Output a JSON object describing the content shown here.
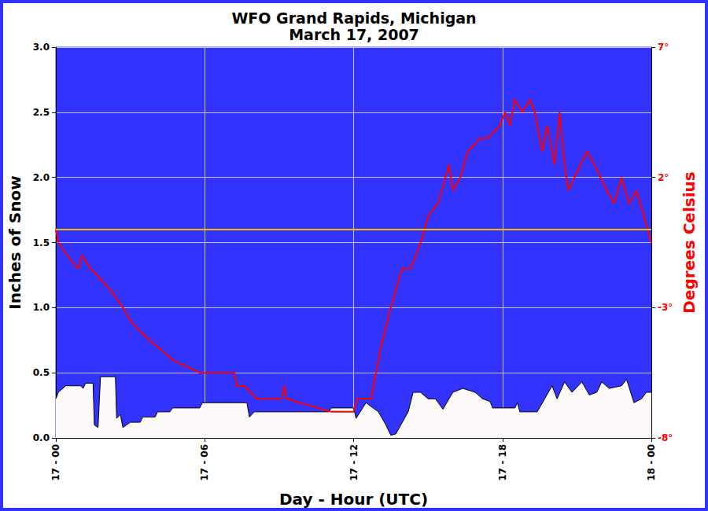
{
  "chart_data": {
    "type": "line",
    "title": "WFO Grand Rapids, Michigan",
    "subtitle": "March 17, 2007",
    "x_label": "Day - Hour (UTC)",
    "y_label": "Inches of Snow",
    "y2_label": "Degrees Celsius",
    "xlim": [
      0,
      24
    ],
    "xticks": [
      {
        "value": 0,
        "label": "17 - 00"
      },
      {
        "value": 6,
        "label": "17 - 06"
      },
      {
        "value": 12,
        "label": "17 - 12"
      },
      {
        "value": 18,
        "label": "17 - 18"
      },
      {
        "value": 24,
        "label": "18 - 00"
      }
    ],
    "ylim": [
      0,
      3
    ],
    "yticks": [
      {
        "value": 0,
        "label": "0.0"
      },
      0.5,
      {
        "value": 1,
        "label": "1.0"
      },
      1.5,
      {
        "value": 2,
        "label": "2.0"
      },
      2.5,
      {
        "value": 3,
        "label": "3.0"
      }
    ],
    "y2lim": [
      -8,
      7
    ],
    "y2ticks": [
      {
        "value": -8,
        "label": "-8°"
      },
      {
        "value": -3,
        "label": "-3°"
      },
      {
        "value": 2,
        "label": "2°"
      },
      {
        "value": 7,
        "label": "7°"
      }
    ],
    "grid": true,
    "reference_lines": [
      {
        "value": 0,
        "axis": "y2",
        "color": "#f0c000"
      }
    ],
    "series": [
      {
        "type": "area",
        "axis": "y",
        "color": "#fdf9f9",
        "x": [
          0,
          0.1,
          0.4,
          1.0,
          1.1,
          1.2,
          1.5,
          1.55,
          1.7,
          1.8,
          2.4,
          2.45,
          2.6,
          2.7,
          3.0,
          3.4,
          3.5,
          4.0,
          4.1,
          4.6,
          4.7,
          5.8,
          5.9,
          7.7,
          7.8,
          8.0,
          11.0,
          11.1,
          12.0,
          12.1,
          12.5,
          13.0,
          13.3,
          13.5,
          13.7,
          14.2,
          14.4,
          14.7,
          15.0,
          15.3,
          15.6,
          16.0,
          16.4,
          16.9,
          17.2,
          17.5,
          17.6,
          18.5,
          18.6,
          18.7,
          19.4,
          19.7,
          20.0,
          20.2,
          20.5,
          20.8,
          21.2,
          21.5,
          21.8,
          22.0,
          22.3,
          22.8,
          23.0,
          23.3,
          23.6,
          23.8,
          24.0
        ],
        "values": [
          0.3,
          0.35,
          0.4,
          0.4,
          0.38,
          0.42,
          0.42,
          0.1,
          0.08,
          0.47,
          0.47,
          0.15,
          0.18,
          0.08,
          0.12,
          0.12,
          0.16,
          0.16,
          0.2,
          0.2,
          0.23,
          0.23,
          0.27,
          0.27,
          0.16,
          0.2,
          0.2,
          0.23,
          0.23,
          0.15,
          0.27,
          0.2,
          0.1,
          0.02,
          0.03,
          0.2,
          0.35,
          0.35,
          0.3,
          0.3,
          0.22,
          0.35,
          0.38,
          0.35,
          0.3,
          0.28,
          0.23,
          0.23,
          0.27,
          0.2,
          0.2,
          0.3,
          0.4,
          0.3,
          0.43,
          0.35,
          0.43,
          0.33,
          0.35,
          0.43,
          0.38,
          0.4,
          0.45,
          0.27,
          0.3,
          0.35,
          0.35
        ]
      },
      {
        "type": "line",
        "axis": "y2",
        "color": "#ff0000",
        "x": [
          0,
          0.1,
          0.45,
          0.9,
          1.05,
          1.4,
          1.9,
          2.35,
          2.7,
          3.0,
          3.5,
          4.1,
          4.7,
          5.8,
          7.2,
          7.3,
          7.6,
          8.1,
          9.1,
          9.2,
          9.3,
          11.1,
          12.0,
          12.15,
          12.7,
          12.9,
          13.1,
          13.5,
          13.8,
          13.95,
          14.3,
          14.7,
          15.0,
          15.4,
          15.7,
          15.85,
          16.0,
          16.3,
          16.6,
          17.1,
          17.4,
          17.9,
          18.1,
          18.3,
          18.5,
          18.8,
          19.1,
          19.3,
          19.6,
          19.8,
          20.1,
          20.3,
          20.5,
          20.65,
          20.9,
          21.4,
          21.7,
          22.2,
          22.5,
          22.8,
          23.1,
          23.4,
          23.7,
          24.0
        ],
        "values": [
          0,
          -0.5,
          -1.0,
          -1.5,
          -1.0,
          -1.5,
          -2.0,
          -2.5,
          -3.0,
          -3.5,
          -4.0,
          -4.5,
          -5.0,
          -5.5,
          -5.5,
          -6.0,
          -6.0,
          -6.5,
          -6.5,
          -6.0,
          -6.5,
          -7.0,
          -7.0,
          -6.5,
          -6.5,
          -5.5,
          -4.5,
          -3.0,
          -2.0,
          -1.5,
          -1.5,
          -0.5,
          0.5,
          1.0,
          2.0,
          2.5,
          1.5,
          2.0,
          3.0,
          3.5,
          3.5,
          4.0,
          4.5,
          4.0,
          5.0,
          4.5,
          5.0,
          4.5,
          3.0,
          4.0,
          2.5,
          4.5,
          2.5,
          1.5,
          2.0,
          3.0,
          2.5,
          1.5,
          1.0,
          2.0,
          1.0,
          1.5,
          0.5,
          -0.5
        ]
      }
    ]
  }
}
